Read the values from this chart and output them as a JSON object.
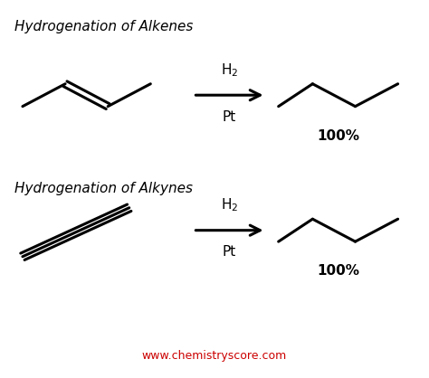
{
  "title1": "Hydrogenation of Alkenes",
  "title2": "Hydrogenation of Alkynes",
  "reagent_top": "H$_2$",
  "catalyst_top": "Pt",
  "reagent_bot": "H$_2$",
  "catalyst_bot": "Pt",
  "percent1": "100%",
  "percent2": "100%",
  "website": "www.chemistryscore.com",
  "bg_color": "#ffffff",
  "line_color": "#000000",
  "website_color": "#cc0000",
  "line_width": 2.2
}
